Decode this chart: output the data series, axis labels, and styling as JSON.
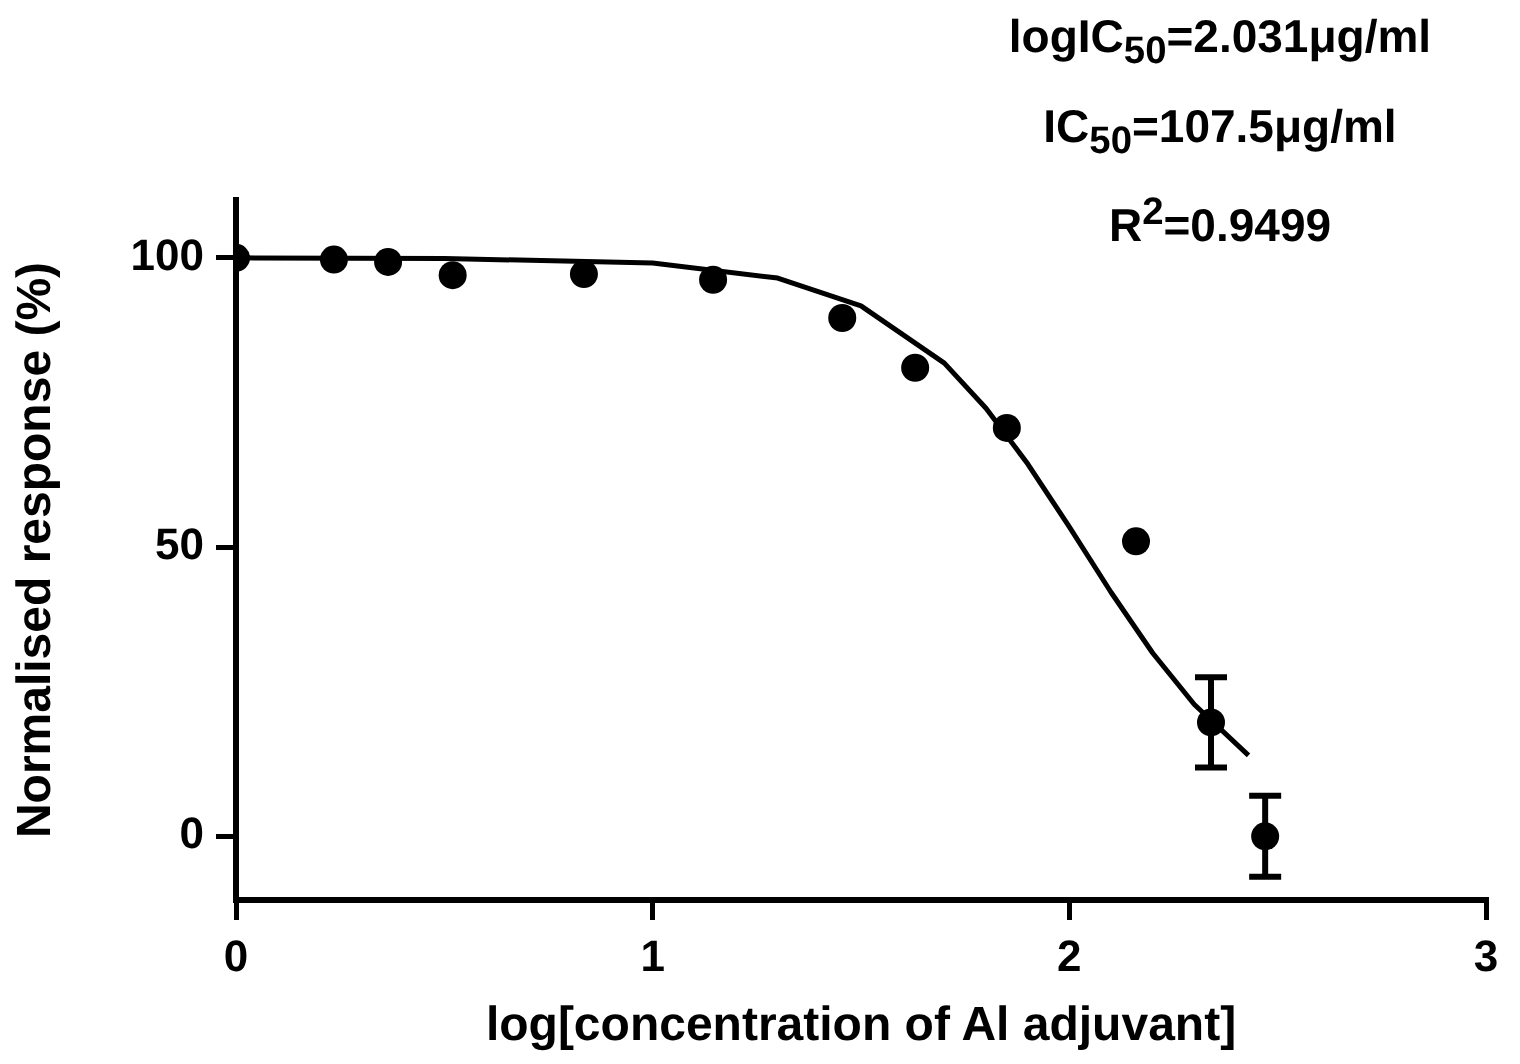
{
  "chart_data": {
    "type": "scatter",
    "xlabel": "log[concentration of Al adjuvant]",
    "ylabel": "Normalised response (%)",
    "annotations": [
      "logIC$_{50}$=2.031μg/ml",
      "IC$_{50}$=107.5μg/ml",
      "R$^{2}$=0.9499"
    ],
    "series": [
      {
        "color": "#000000",
        "marker": "circle",
        "x": [
          0,
          0.235,
          0.365,
          0.52,
          0.835,
          1.145,
          1.455,
          1.63,
          1.85,
          2.16,
          2.34,
          2.47
        ],
        "values": [
          100,
          99.7,
          99.3,
          97,
          97.2,
          96.2,
          89.6,
          81,
          70.6,
          51,
          19.7,
          0
        ],
        "errors": [
          null,
          null,
          null,
          null,
          null,
          null,
          null,
          null,
          null,
          null,
          7.8,
          7
        ]
      },
      {
        "type": "line",
        "color": "#000000",
        "x": [
          0,
          0.5,
          1,
          1.3,
          1.5,
          1.7,
          1.8,
          1.9,
          2.0,
          2.1,
          2.2,
          2.3,
          2.43
        ],
        "values": [
          100,
          99.9,
          99.1,
          96.5,
          91.7,
          81.8,
          74,
          64.4,
          53.5,
          42.2,
          31.7,
          22.8,
          14
        ]
      }
    ],
    "legend": false,
    "grid": false,
    "xlim": [
      0,
      3
    ],
    "xticks": [
      0,
      1,
      2,
      3
    ],
    "ylim": [
      -11,
      110
    ],
    "yticks": [
      0,
      50,
      100
    ]
  }
}
